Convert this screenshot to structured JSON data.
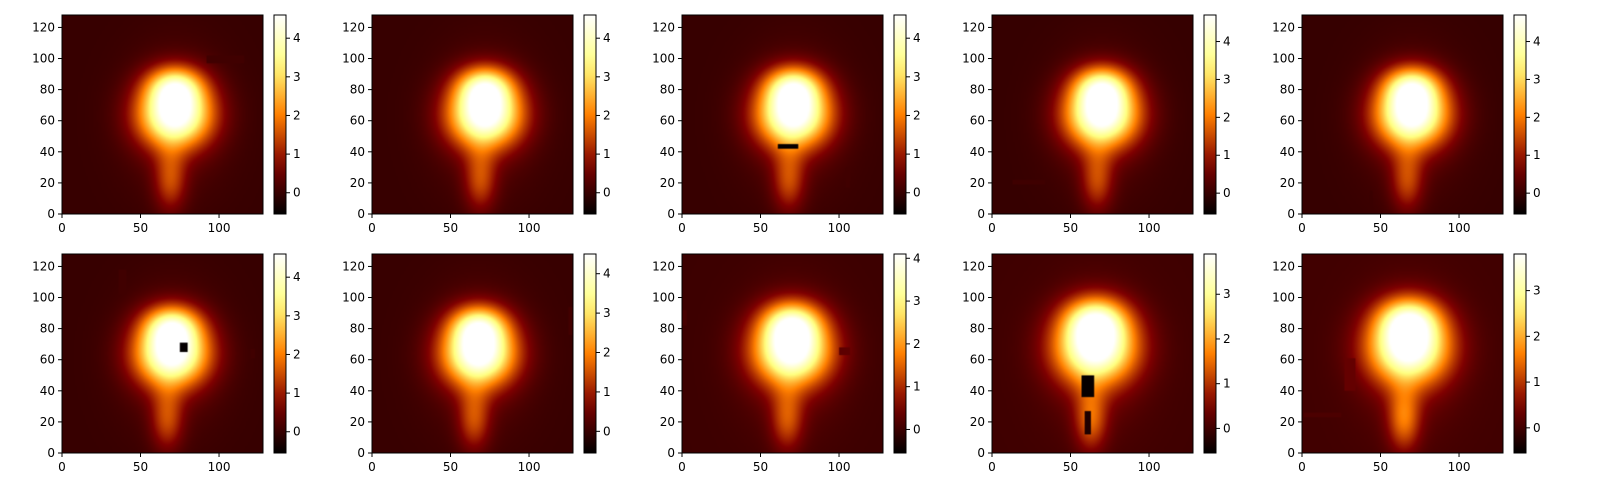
{
  "chart_data": {
    "type": "heatmap",
    "colormap": "afmhot",
    "grid": false,
    "layout": {
      "rows": 2,
      "cols": 5
    },
    "xlim": [
      0,
      128
    ],
    "ylim": [
      0,
      128
    ],
    "xticks": [
      0,
      50,
      100
    ],
    "yticks": [
      0,
      20,
      40,
      60,
      80,
      100,
      120
    ],
    "panels": [
      {
        "vmin": -0.55,
        "vmax": 4.6,
        "cbar_ticks": [
          0,
          1,
          2,
          3,
          4
        ],
        "blob": {
          "x": 72,
          "y": 64,
          "rx": 21,
          "ry": 19,
          "peak": 4.6,
          "head_y": 82,
          "tail": 1.3
        },
        "dark_patches": [
          {
            "x0": 92,
            "x1": 116,
            "y0": 97,
            "y1": 102,
            "v": 0.1
          }
        ]
      },
      {
        "vmin": -0.55,
        "vmax": 4.6,
        "cbar_ticks": [
          0,
          1,
          2,
          3,
          4
        ],
        "blob": {
          "x": 72,
          "y": 64,
          "rx": 21,
          "ry": 19,
          "peak": 4.6,
          "head_y": 82,
          "tail": 1.3
        },
        "dark_patches": []
      },
      {
        "vmin": -0.55,
        "vmax": 4.6,
        "cbar_ticks": [
          0,
          1,
          2,
          3,
          4
        ],
        "blob": {
          "x": 71,
          "y": 64,
          "rx": 21,
          "ry": 19,
          "peak": 4.6,
          "head_y": 82,
          "tail": 1.3
        },
        "dark_patches": [
          {
            "x0": 61,
            "x1": 74,
            "y0": 42,
            "y1": 45,
            "v": -0.5
          },
          {
            "x0": 104,
            "x1": 107,
            "y0": 17,
            "y1": 30,
            "v": 0.1
          }
        ]
      },
      {
        "vmin": -0.55,
        "vmax": 4.7,
        "cbar_ticks": [
          0,
          1,
          2,
          3,
          4
        ],
        "blob": {
          "x": 70,
          "y": 64,
          "rx": 21,
          "ry": 19,
          "peak": 4.7,
          "head_y": 82,
          "tail": 1.3
        },
        "dark_patches": [
          {
            "x0": 13,
            "x1": 34,
            "y0": 19,
            "y1": 22,
            "v": 0.1
          }
        ]
      },
      {
        "vmin": -0.55,
        "vmax": 4.7,
        "cbar_ticks": [
          0,
          1,
          2,
          3,
          4
        ],
        "blob": {
          "x": 70,
          "y": 64,
          "rx": 21,
          "ry": 19,
          "peak": 4.7,
          "head_y": 82,
          "tail": 1.3
        },
        "dark_patches": [
          {
            "x0": 43,
            "x1": 45,
            "y0": 3,
            "y1": 15,
            "v": 0.05
          }
        ]
      },
      {
        "vmin": -0.55,
        "vmax": 4.6,
        "cbar_ticks": [
          0,
          1,
          2,
          3,
          4
        ],
        "blob": {
          "x": 70,
          "y": 64,
          "rx": 21,
          "ry": 19,
          "peak": 4.6,
          "head_y": 82,
          "tail": 1.3
        },
        "dark_patches": [
          {
            "x0": 36,
            "x1": 41,
            "y0": 102,
            "y1": 118,
            "v": 0.1
          },
          {
            "x0": 75,
            "x1": 80,
            "y0": 65,
            "y1": 71,
            "v": -0.5
          },
          {
            "x0": 120,
            "x1": 123,
            "y0": 61,
            "y1": 67,
            "v": 0.1
          }
        ]
      },
      {
        "vmin": -0.55,
        "vmax": 4.5,
        "cbar_ticks": [
          0,
          1,
          2,
          3,
          4
        ],
        "blob": {
          "x": 68,
          "y": 64,
          "rx": 21,
          "ry": 19,
          "peak": 4.5,
          "head_y": 82,
          "tail": 1.3
        },
        "dark_patches": [
          {
            "x0": 125,
            "x1": 128,
            "y0": 76,
            "y1": 94,
            "v": 0.1
          }
        ]
      },
      {
        "vmin": -0.55,
        "vmax": 4.1,
        "cbar_ticks": [
          0,
          1,
          2,
          3,
          4
        ],
        "blob": {
          "x": 70,
          "y": 66,
          "rx": 22,
          "ry": 20,
          "peak": 4.1,
          "head_y": 84,
          "tail": 1.2
        },
        "dark_patches": [
          {
            "x0": 0,
            "x1": 3,
            "y0": 82,
            "y1": 92,
            "v": 0.1
          },
          {
            "x0": 100,
            "x1": 107,
            "y0": 63,
            "y1": 68,
            "v": 0.3
          }
        ]
      },
      {
        "vmin": -0.55,
        "vmax": 3.9,
        "cbar_ticks": [
          0,
          1,
          2,
          3
        ],
        "blob": {
          "x": 66,
          "y": 68,
          "rx": 23,
          "ry": 21,
          "peak": 3.9,
          "head_y": 86,
          "tail": 1.3
        },
        "dark_patches": [
          {
            "x0": 57,
            "x1": 65,
            "y0": 36,
            "y1": 50,
            "v": -0.5
          },
          {
            "x0": 59,
            "x1": 63,
            "y0": 12,
            "y1": 27,
            "v": -0.3
          }
        ]
      },
      {
        "vmin": -0.55,
        "vmax": 3.8,
        "cbar_ticks": [
          0,
          1,
          2,
          3
        ],
        "blob": {
          "x": 68,
          "y": 68,
          "rx": 23,
          "ry": 21,
          "peak": 3.8,
          "head_y": 86,
          "tail": 1.4
        },
        "dark_patches": [
          {
            "x0": 27,
            "x1": 34,
            "y0": 40,
            "y1": 61,
            "v": 0.3
          },
          {
            "x0": 1,
            "x1": 25,
            "y0": 23,
            "y1": 26,
            "v": 0.1
          }
        ]
      }
    ]
  }
}
